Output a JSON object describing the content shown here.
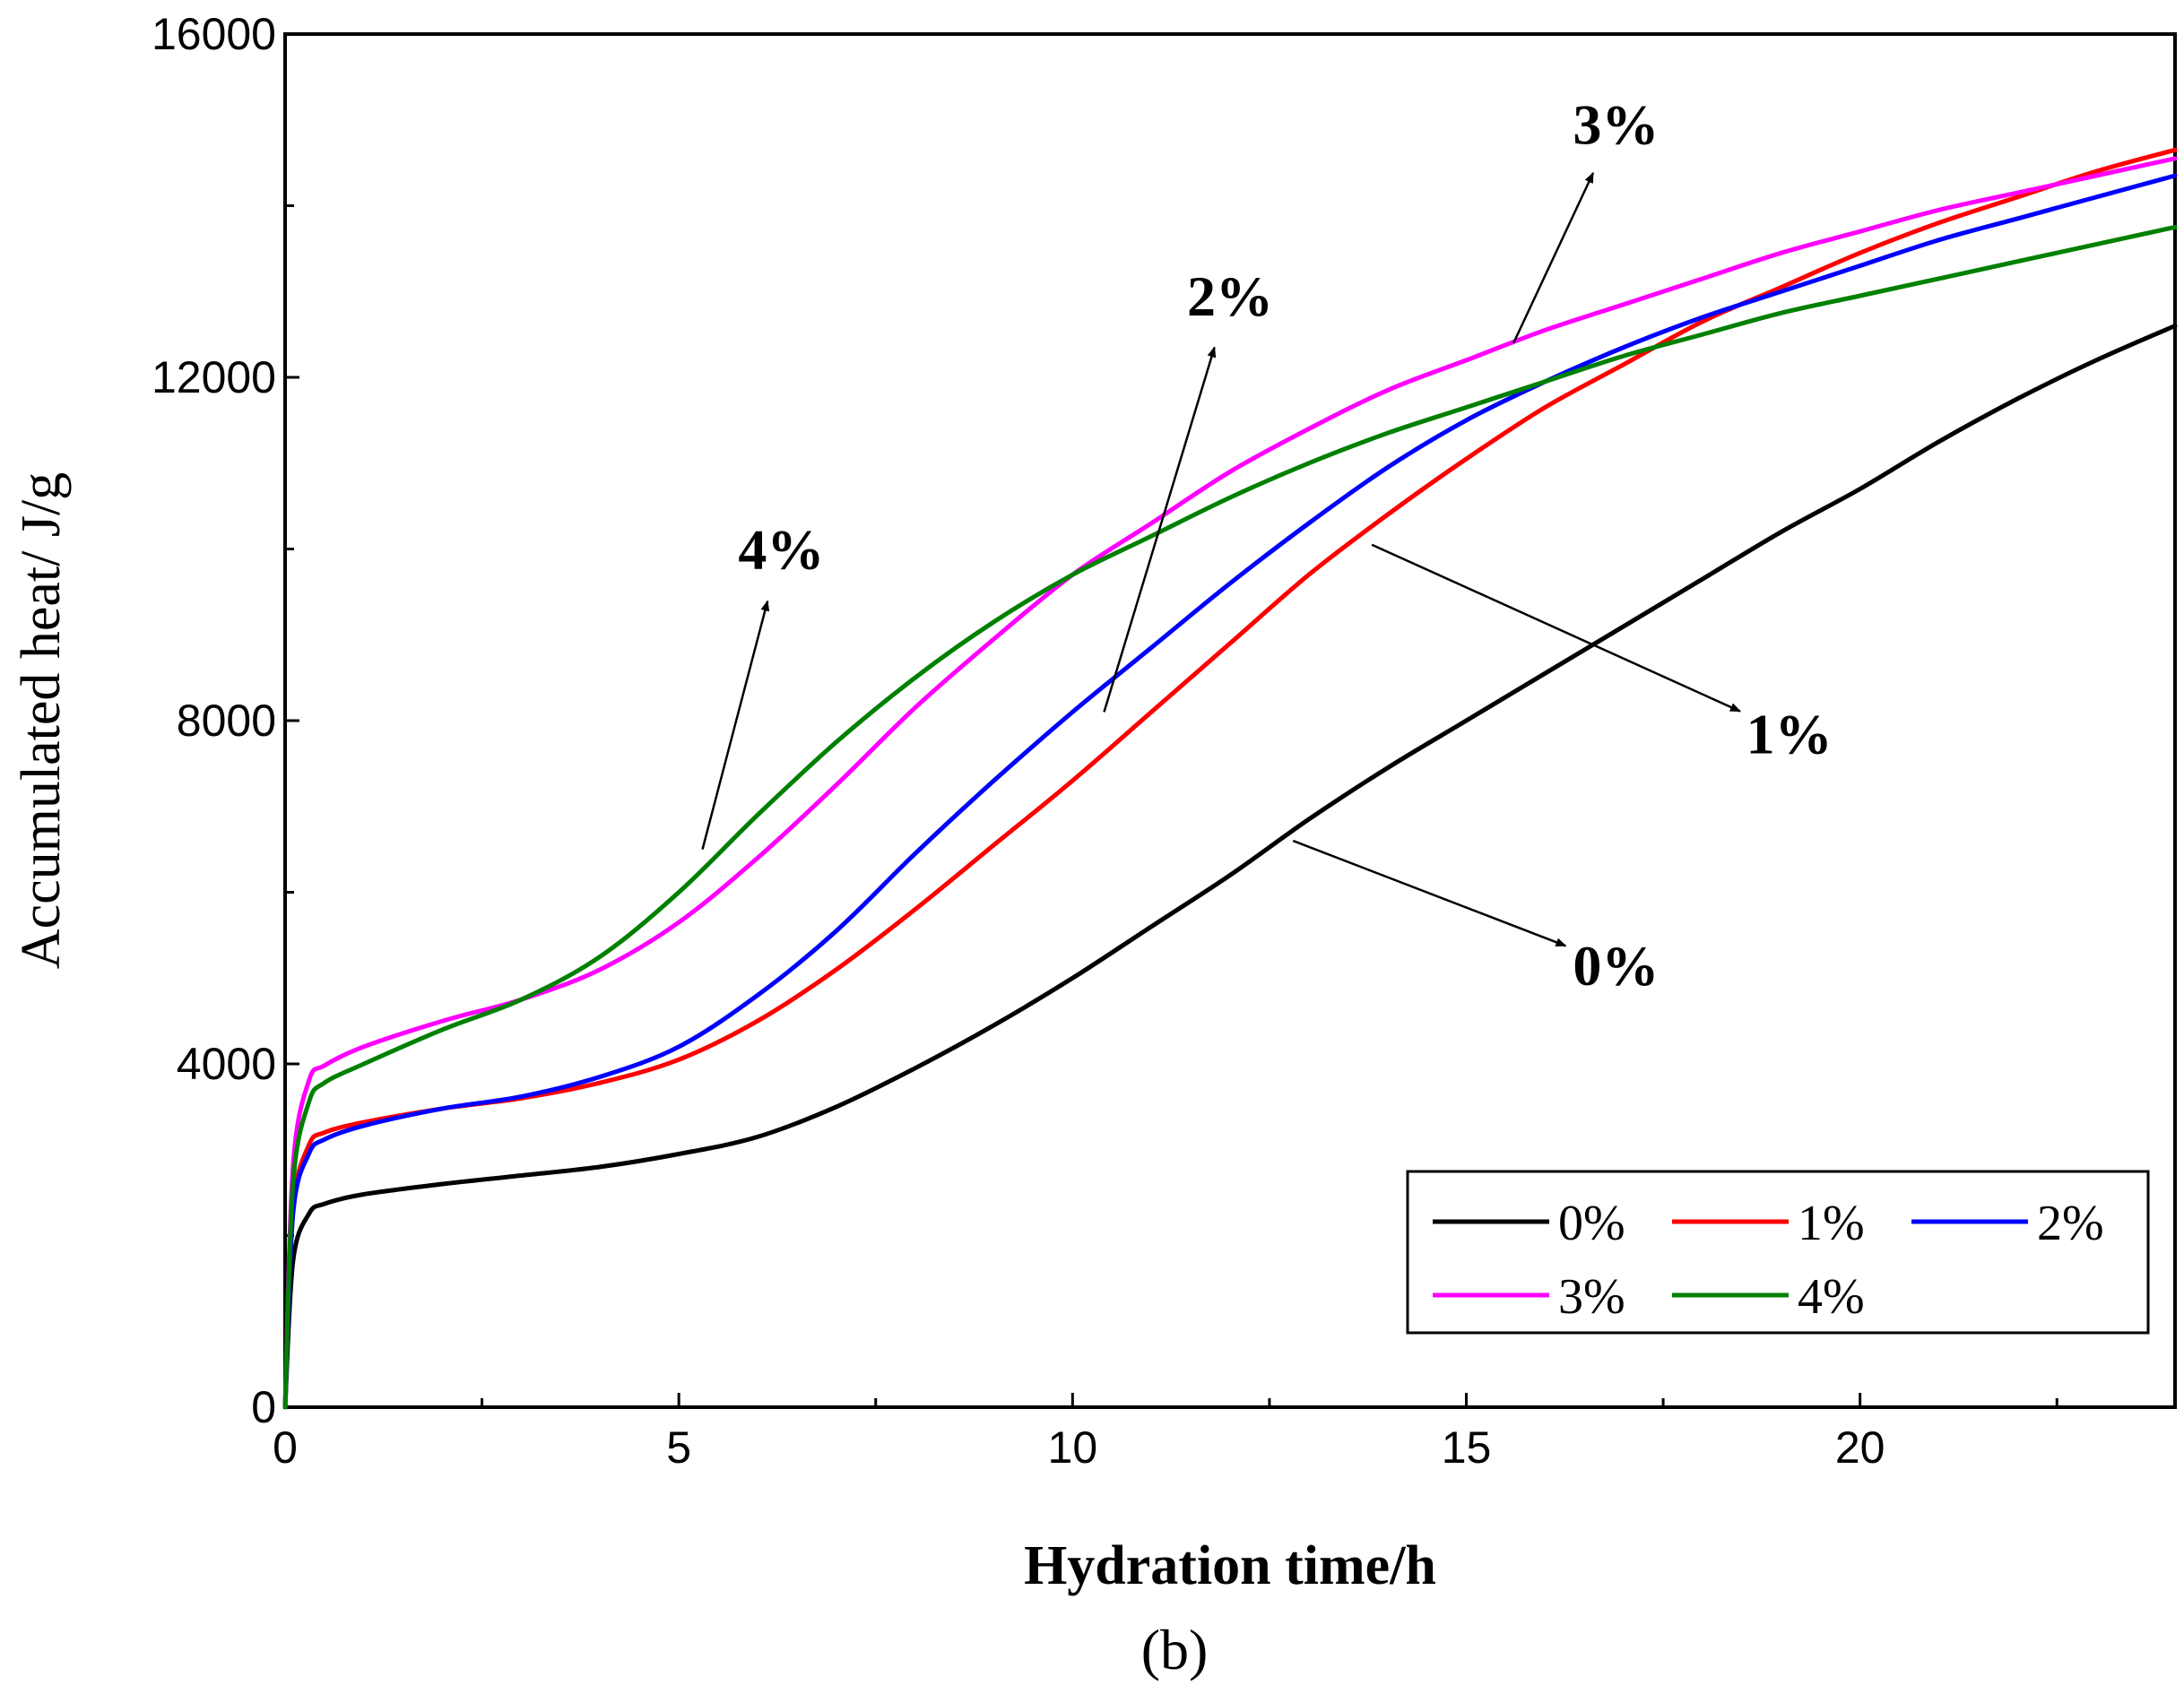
{
  "chart_data": {
    "type": "line",
    "caption": "(b)",
    "xlabel": "Hydration time/h",
    "ylabel": "Accumulated heat/ J/g",
    "xlim": [
      0,
      24
    ],
    "ylim": [
      0,
      16000
    ],
    "xticks": [
      0,
      5,
      10,
      15,
      20
    ],
    "yticks": [
      0,
      4000,
      8000,
      12000,
      16000
    ],
    "grid": false,
    "legend_position": "bottom-right",
    "series": [
      {
        "name": "0%",
        "color": "#000000",
        "x": [
          0,
          0.1,
          0.3,
          0.5,
          1,
          2,
          3,
          4,
          5,
          6,
          7,
          8,
          9,
          10,
          11,
          12,
          13,
          14,
          15,
          16,
          17,
          18,
          19,
          20,
          21,
          22,
          23,
          24
        ],
        "y": [
          0,
          1700,
          2250,
          2370,
          2480,
          2600,
          2700,
          2800,
          2950,
          3150,
          3500,
          3950,
          4450,
          5000,
          5600,
          6200,
          6850,
          7450,
          8000,
          8550,
          9100,
          9650,
          10200,
          10700,
          11250,
          11750,
          12200,
          12600
        ]
      },
      {
        "name": "1%",
        "color": "#ff0000",
        "x": [
          0,
          0.1,
          0.3,
          0.5,
          1,
          2,
          3,
          4,
          5,
          6,
          7,
          8,
          9,
          10,
          11,
          12,
          13,
          14,
          15,
          16,
          17,
          18,
          19,
          20,
          21,
          22,
          23,
          24
        ],
        "y": [
          0,
          2300,
          3050,
          3200,
          3320,
          3480,
          3600,
          3780,
          4050,
          4500,
          5100,
          5800,
          6550,
          7300,
          8100,
          8900,
          9700,
          10400,
          11050,
          11650,
          12150,
          12650,
          13050,
          13450,
          13800,
          14100,
          14400,
          14650
        ]
      },
      {
        "name": "2%",
        "color": "#0000ff",
        "x": [
          0,
          0.1,
          0.3,
          0.5,
          1,
          2,
          3,
          4,
          5,
          6,
          7,
          8,
          9,
          10,
          11,
          12,
          13,
          14,
          15,
          16,
          17,
          18,
          19,
          20,
          21,
          22,
          23,
          24
        ],
        "y": [
          0,
          2250,
          2950,
          3120,
          3280,
          3480,
          3620,
          3850,
          4200,
          4800,
          5550,
          6450,
          7300,
          8100,
          8850,
          9600,
          10300,
          10950,
          11500,
          11950,
          12350,
          12700,
          13000,
          13300,
          13600,
          13850,
          14100,
          14350
        ]
      },
      {
        "name": "3%",
        "color": "#ff00ff",
        "x": [
          0,
          0.1,
          0.3,
          0.5,
          1,
          2,
          3,
          4,
          5,
          6,
          7,
          8,
          9,
          10,
          11,
          12,
          13,
          14,
          15,
          16,
          17,
          18,
          19,
          20,
          21,
          22,
          23,
          24
        ],
        "y": [
          0,
          2800,
          3800,
          3980,
          4200,
          4500,
          4750,
          5100,
          5650,
          6400,
          7250,
          8150,
          8950,
          9700,
          10300,
          10900,
          11400,
          11850,
          12200,
          12550,
          12850,
          13150,
          13450,
          13700,
          13950,
          14150,
          14350,
          14550
        ]
      },
      {
        "name": "4%",
        "color": "#008000",
        "x": [
          0,
          0.1,
          0.3,
          0.5,
          1,
          2,
          3,
          4,
          5,
          6,
          7,
          8,
          9,
          10,
          11,
          12,
          13,
          14,
          15,
          16,
          17,
          18,
          19,
          20,
          21,
          22,
          23,
          24
        ],
        "y": [
          0,
          2600,
          3550,
          3780,
          4000,
          4400,
          4750,
          5250,
          6000,
          6900,
          7750,
          8500,
          9150,
          9700,
          10150,
          10600,
          11000,
          11350,
          11650,
          11950,
          12250,
          12500,
          12750,
          12950,
          13150,
          13350,
          13550,
          13750
        ]
      }
    ],
    "annotations": [
      {
        "text": "0%",
        "series": "0%",
        "at_x": 12.8,
        "at_y": 6600,
        "label_x": 16.9,
        "label_y": 5150
      },
      {
        "text": "1%",
        "series": "1%",
        "at_x": 13.8,
        "at_y": 10050,
        "label_x": 19.1,
        "label_y": 7850
      },
      {
        "text": "2%",
        "series": "2%",
        "at_x": 10.4,
        "at_y": 8100,
        "label_x": 12.0,
        "label_y": 12950
      },
      {
        "text": "3%",
        "series": "3%",
        "at_x": 15.6,
        "at_y": 12400,
        "label_x": 16.9,
        "label_y": 14950
      },
      {
        "text": "4%",
        "series": "4%",
        "at_x": 5.3,
        "at_y": 6500,
        "label_x": 6.3,
        "label_y": 10000
      }
    ]
  }
}
